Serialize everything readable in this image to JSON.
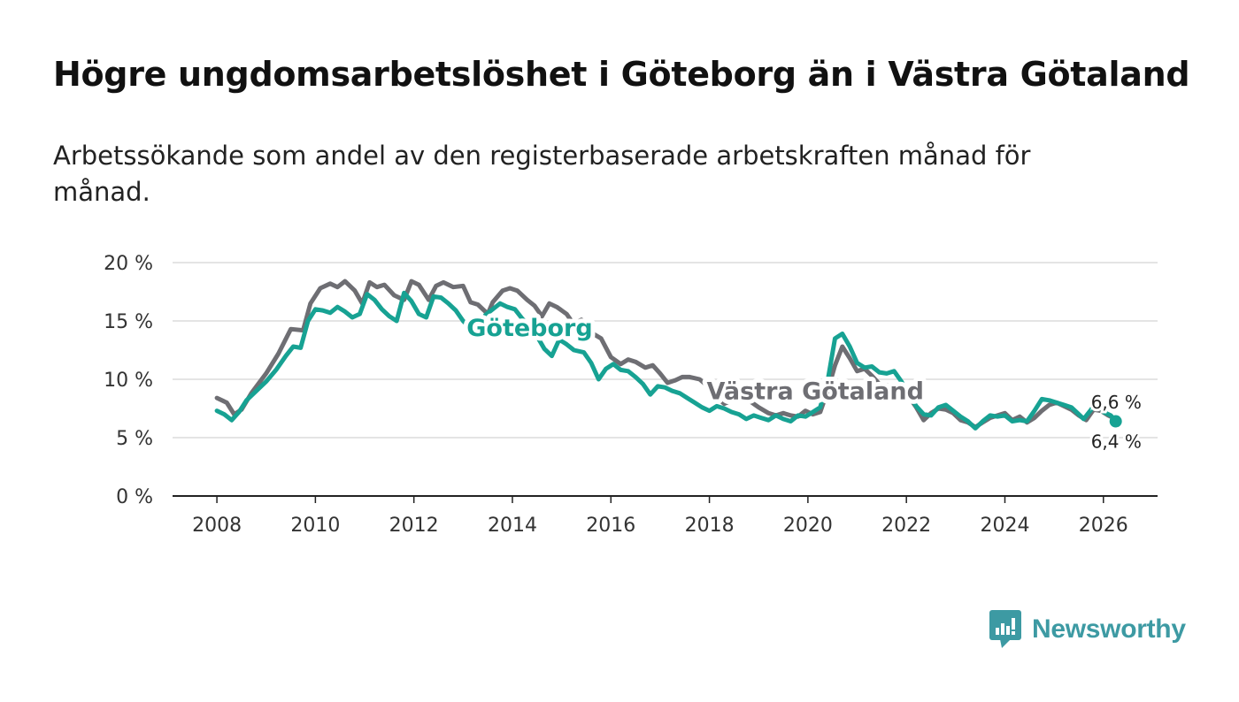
{
  "title": "Högre ungdomsarbetslöshet i Göteborg än i Västra Götaland",
  "subtitle": "Arbetssökande som andel av den registerbaserade arbetskraften månad för månad.",
  "brand": {
    "name": "Newsworthy",
    "color": "#3d9aa3"
  },
  "chart_data": {
    "type": "line",
    "title": "Högre ungdomsarbetslöshet i Göteborg än i Västra Götaland",
    "xlabel": "",
    "ylabel": "",
    "xlim": [
      2007.1,
      2027.1
    ],
    "ylim": [
      0,
      20
    ],
    "grid": true,
    "x_ticks": [
      2008,
      2010,
      2012,
      2014,
      2016,
      2018,
      2020,
      2022,
      2024,
      2026
    ],
    "x_tick_labels": [
      "2008",
      "2010",
      "2012",
      "2014",
      "2016",
      "2018",
      "2020",
      "2022",
      "2024",
      "2026"
    ],
    "y_ticks": [
      0,
      5,
      10,
      15,
      20
    ],
    "y_tick_labels": [
      "0 %",
      "5 %",
      "10 %",
      "15 %",
      "20 %"
    ],
    "series": [
      {
        "name": "Västra Götaland",
        "color": "#6e6e73",
        "label": "Västra Götaland",
        "end_label": "6,6 %",
        "points": [
          [
            2008.0,
            8.4
          ],
          [
            2008.2,
            8.0
          ],
          [
            2008.35,
            7.0
          ],
          [
            2008.5,
            7.4
          ],
          [
            2008.7,
            8.8
          ],
          [
            2009.0,
            10.5
          ],
          [
            2009.25,
            12.2
          ],
          [
            2009.5,
            14.3
          ],
          [
            2009.75,
            14.2
          ],
          [
            2009.9,
            16.5
          ],
          [
            2010.1,
            17.8
          ],
          [
            2010.3,
            18.2
          ],
          [
            2010.45,
            17.9
          ],
          [
            2010.6,
            18.4
          ],
          [
            2010.8,
            17.6
          ],
          [
            2010.95,
            16.5
          ],
          [
            2011.1,
            18.3
          ],
          [
            2011.25,
            17.9
          ],
          [
            2011.4,
            18.1
          ],
          [
            2011.6,
            17.2
          ],
          [
            2011.8,
            16.8
          ],
          [
            2011.95,
            18.4
          ],
          [
            2012.1,
            18.1
          ],
          [
            2012.3,
            16.8
          ],
          [
            2012.45,
            18.0
          ],
          [
            2012.6,
            18.3
          ],
          [
            2012.8,
            17.9
          ],
          [
            2013.0,
            18.0
          ],
          [
            2013.15,
            16.6
          ],
          [
            2013.3,
            16.4
          ],
          [
            2013.5,
            15.6
          ],
          [
            2013.6,
            16.6
          ],
          [
            2013.8,
            17.6
          ],
          [
            2013.95,
            17.8
          ],
          [
            2014.1,
            17.6
          ],
          [
            2014.3,
            16.8
          ],
          [
            2014.45,
            16.3
          ],
          [
            2014.6,
            15.4
          ],
          [
            2014.75,
            16.5
          ],
          [
            2014.9,
            16.2
          ],
          [
            2015.1,
            15.6
          ],
          [
            2015.25,
            14.7
          ],
          [
            2015.4,
            15.1
          ],
          [
            2015.6,
            14.0
          ],
          [
            2015.8,
            13.5
          ],
          [
            2016.0,
            11.9
          ],
          [
            2016.2,
            11.3
          ],
          [
            2016.35,
            11.7
          ],
          [
            2016.5,
            11.5
          ],
          [
            2016.7,
            11.0
          ],
          [
            2016.85,
            11.2
          ],
          [
            2017.0,
            10.5
          ],
          [
            2017.15,
            9.7
          ],
          [
            2017.3,
            9.9
          ],
          [
            2017.45,
            10.2
          ],
          [
            2017.6,
            10.2
          ],
          [
            2017.8,
            10.0
          ],
          [
            2018.0,
            9.3
          ],
          [
            2018.15,
            8.5
          ],
          [
            2018.3,
            7.9
          ],
          [
            2018.45,
            8.2
          ],
          [
            2018.6,
            8.5
          ],
          [
            2018.8,
            8.2
          ],
          [
            2019.0,
            7.6
          ],
          [
            2019.2,
            7.1
          ],
          [
            2019.35,
            6.9
          ],
          [
            2019.5,
            7.1
          ],
          [
            2019.65,
            6.9
          ],
          [
            2019.8,
            6.8
          ],
          [
            2019.95,
            7.3
          ],
          [
            2020.1,
            7.0
          ],
          [
            2020.25,
            7.2
          ],
          [
            2020.4,
            9.0
          ],
          [
            2020.55,
            11.2
          ],
          [
            2020.7,
            12.8
          ],
          [
            2020.85,
            11.8
          ],
          [
            2021.0,
            10.7
          ],
          [
            2021.15,
            10.9
          ],
          [
            2021.3,
            10.3
          ],
          [
            2021.45,
            9.6
          ],
          [
            2021.6,
            9.5
          ],
          [
            2021.75,
            9.2
          ],
          [
            2021.9,
            9.4
          ],
          [
            2022.05,
            8.5
          ],
          [
            2022.2,
            7.6
          ],
          [
            2022.35,
            6.5
          ],
          [
            2022.5,
            7.1
          ],
          [
            2022.65,
            7.5
          ],
          [
            2022.8,
            7.4
          ],
          [
            2022.95,
            7.1
          ],
          [
            2023.1,
            6.5
          ],
          [
            2023.25,
            6.3
          ],
          [
            2023.4,
            5.9
          ],
          [
            2023.55,
            6.3
          ],
          [
            2023.7,
            6.7
          ],
          [
            2023.85,
            6.9
          ],
          [
            2024.0,
            7.1
          ],
          [
            2024.15,
            6.5
          ],
          [
            2024.3,
            6.8
          ],
          [
            2024.45,
            6.3
          ],
          [
            2024.6,
            6.7
          ],
          [
            2024.75,
            7.3
          ],
          [
            2024.9,
            7.8
          ],
          [
            2025.05,
            8.0
          ],
          [
            2025.2,
            7.7
          ],
          [
            2025.35,
            7.4
          ],
          [
            2025.5,
            6.9
          ],
          [
            2025.65,
            6.5
          ],
          [
            2025.8,
            7.4
          ],
          [
            2025.95,
            7.3
          ],
          [
            2026.1,
            6.9
          ],
          [
            2026.25,
            6.6
          ]
        ]
      },
      {
        "name": "Göteborg",
        "color": "#17a293",
        "label": "Göteborg",
        "end_label": "6,4 %",
        "points": [
          [
            2008.0,
            7.3
          ],
          [
            2008.15,
            7.0
          ],
          [
            2008.3,
            6.5
          ],
          [
            2008.45,
            7.2
          ],
          [
            2008.6,
            8.2
          ],
          [
            2008.8,
            9.0
          ],
          [
            2009.0,
            9.8
          ],
          [
            2009.2,
            10.8
          ],
          [
            2009.4,
            12.0
          ],
          [
            2009.55,
            12.8
          ],
          [
            2009.7,
            12.7
          ],
          [
            2009.85,
            15.0
          ],
          [
            2010.0,
            16.0
          ],
          [
            2010.15,
            15.9
          ],
          [
            2010.3,
            15.7
          ],
          [
            2010.45,
            16.2
          ],
          [
            2010.6,
            15.8
          ],
          [
            2010.75,
            15.3
          ],
          [
            2010.9,
            15.6
          ],
          [
            2011.05,
            17.3
          ],
          [
            2011.2,
            16.8
          ],
          [
            2011.35,
            16.0
          ],
          [
            2011.5,
            15.4
          ],
          [
            2011.65,
            15.0
          ],
          [
            2011.8,
            17.4
          ],
          [
            2011.95,
            16.7
          ],
          [
            2012.1,
            15.6
          ],
          [
            2012.25,
            15.3
          ],
          [
            2012.4,
            17.1
          ],
          [
            2012.55,
            17.0
          ],
          [
            2012.7,
            16.5
          ],
          [
            2012.85,
            15.9
          ],
          [
            2013.0,
            15.0
          ],
          [
            2013.15,
            14.4
          ],
          [
            2013.3,
            13.6
          ],
          [
            2013.45,
            15.5
          ],
          [
            2013.6,
            16.0
          ],
          [
            2013.75,
            16.5
          ],
          [
            2013.9,
            16.2
          ],
          [
            2014.05,
            16.0
          ],
          [
            2014.2,
            15.2
          ],
          [
            2014.35,
            14.5
          ],
          [
            2014.5,
            13.7
          ],
          [
            2014.65,
            12.6
          ],
          [
            2014.8,
            12.0
          ],
          [
            2014.95,
            13.4
          ],
          [
            2015.1,
            13.0
          ],
          [
            2015.25,
            12.5
          ],
          [
            2015.45,
            12.3
          ],
          [
            2015.6,
            11.4
          ],
          [
            2015.75,
            10.0
          ],
          [
            2015.9,
            10.9
          ],
          [
            2016.05,
            11.3
          ],
          [
            2016.2,
            10.8
          ],
          [
            2016.35,
            10.7
          ],
          [
            2016.5,
            10.2
          ],
          [
            2016.65,
            9.6
          ],
          [
            2016.8,
            8.7
          ],
          [
            2016.95,
            9.4
          ],
          [
            2017.1,
            9.3
          ],
          [
            2017.25,
            9.0
          ],
          [
            2017.4,
            8.8
          ],
          [
            2017.55,
            8.4
          ],
          [
            2017.7,
            8.0
          ],
          [
            2017.85,
            7.6
          ],
          [
            2018.0,
            7.3
          ],
          [
            2018.15,
            7.7
          ],
          [
            2018.3,
            7.5
          ],
          [
            2018.45,
            7.2
          ],
          [
            2018.6,
            7.0
          ],
          [
            2018.75,
            6.6
          ],
          [
            2018.9,
            6.9
          ],
          [
            2019.05,
            6.7
          ],
          [
            2019.2,
            6.5
          ],
          [
            2019.35,
            6.9
          ],
          [
            2019.5,
            6.6
          ],
          [
            2019.65,
            6.4
          ],
          [
            2019.8,
            6.9
          ],
          [
            2019.95,
            6.8
          ],
          [
            2020.1,
            7.2
          ],
          [
            2020.25,
            7.6
          ],
          [
            2020.4,
            9.8
          ],
          [
            2020.55,
            13.5
          ],
          [
            2020.7,
            13.9
          ],
          [
            2020.85,
            12.8
          ],
          [
            2021.0,
            11.4
          ],
          [
            2021.15,
            11.0
          ],
          [
            2021.3,
            11.1
          ],
          [
            2021.45,
            10.6
          ],
          [
            2021.6,
            10.5
          ],
          [
            2021.75,
            10.7
          ],
          [
            2021.9,
            9.8
          ],
          [
            2022.05,
            8.7
          ],
          [
            2022.2,
            7.7
          ],
          [
            2022.35,
            7.0
          ],
          [
            2022.5,
            6.9
          ],
          [
            2022.65,
            7.6
          ],
          [
            2022.8,
            7.8
          ],
          [
            2022.95,
            7.3
          ],
          [
            2023.1,
            6.8
          ],
          [
            2023.25,
            6.4
          ],
          [
            2023.4,
            5.8
          ],
          [
            2023.55,
            6.4
          ],
          [
            2023.7,
            6.9
          ],
          [
            2023.85,
            6.8
          ],
          [
            2024.0,
            6.9
          ],
          [
            2024.15,
            6.4
          ],
          [
            2024.3,
            6.5
          ],
          [
            2024.45,
            6.4
          ],
          [
            2024.6,
            7.3
          ],
          [
            2024.75,
            8.3
          ],
          [
            2024.9,
            8.2
          ],
          [
            2025.05,
            8.0
          ],
          [
            2025.2,
            7.8
          ],
          [
            2025.35,
            7.6
          ],
          [
            2025.5,
            7.0
          ],
          [
            2025.6,
            6.6
          ],
          [
            2025.75,
            7.4
          ],
          [
            2025.9,
            8.3
          ],
          [
            2026.0,
            7.2
          ],
          [
            2026.15,
            6.9
          ],
          [
            2026.25,
            6.4
          ]
        ]
      }
    ],
    "annotations": [
      {
        "series": "Göteborg",
        "text": "Göteborg",
        "at": [
          2014.35,
          13.7
        ]
      },
      {
        "series": "Västra Götaland",
        "text": "Västra Götaland",
        "at": [
          2020.15,
          8.3
        ]
      }
    ]
  }
}
